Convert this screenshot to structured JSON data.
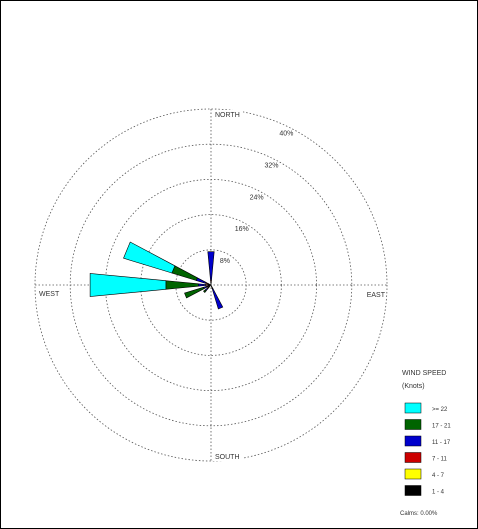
{
  "chart_data": {
    "type": "wind-rose",
    "directions": [
      "NORTH",
      "EAST",
      "SOUTH",
      "WEST"
    ],
    "ring_labels": [
      "8%",
      "16%",
      "24%",
      "32%",
      "40%"
    ],
    "ring_values": [
      8,
      16,
      24,
      32,
      40
    ],
    "max_ring": 40,
    "legend": {
      "title_line1": "WIND SPEED",
      "title_line2": "(Knots)",
      "calms": "Calms: 0.00%"
    },
    "speed_bins": [
      {
        "label": ">= 22",
        "color": "#00ffff"
      },
      {
        "label": "17 - 21",
        "color": "#006400"
      },
      {
        "label": "11 - 17",
        "color": "#0000cc"
      },
      {
        "label": "7 - 11",
        "color": "#cc0000"
      },
      {
        "label": "4 - 7",
        "color": "#ffff00"
      },
      {
        "label": "1 - 4",
        "color": "#000000"
      }
    ],
    "petals": [
      {
        "direction": 0,
        "segments": [
          0.3,
          0.3,
          0.5,
          6.5,
          0,
          0
        ]
      },
      {
        "direction": 292.5,
        "segments": [
          0.3,
          0.4,
          0.6,
          2.2,
          5.8,
          11.5
        ]
      },
      {
        "direction": 270,
        "segments": [
          0.3,
          0.4,
          0.6,
          1.6,
          7.4,
          17.3
        ]
      },
      {
        "direction": 247.5,
        "segments": [
          0.3,
          0.3,
          0.4,
          0.8,
          4.5,
          0
        ]
      },
      {
        "direction": 225,
        "segments": [
          0.3,
          0.3,
          0.5,
          0.6,
          0.5,
          0
        ]
      },
      {
        "direction": 157.5,
        "segments": [
          0.3,
          0.3,
          0.3,
          4.8,
          0,
          0
        ]
      }
    ]
  }
}
